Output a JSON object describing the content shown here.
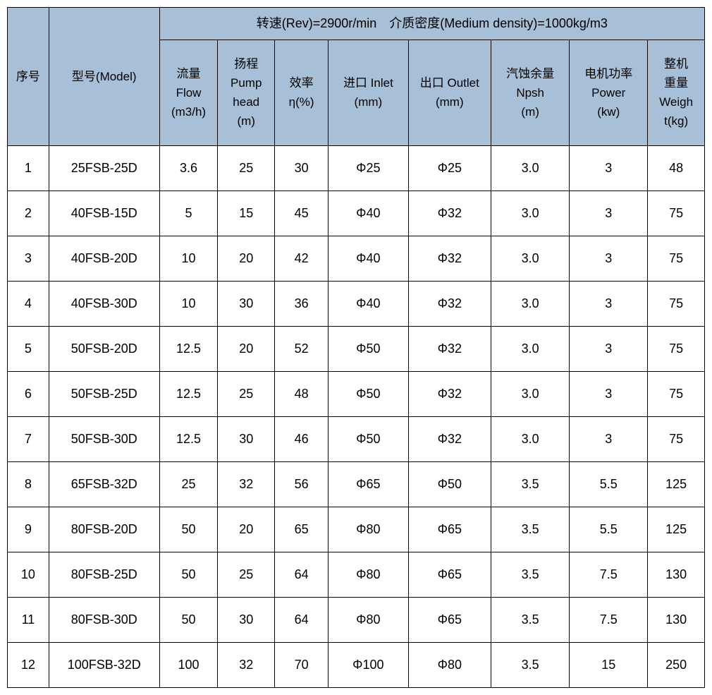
{
  "table": {
    "top_header": "转速(Rev)=2900r/min 介质密度(Medium density)=1000kg/m3",
    "header_bg_color": "#a8bfd8",
    "border_color": "#000000",
    "columns": {
      "seq": "序号",
      "model": "型号(Model)",
      "flow": "流量",
      "flow_en": "Flow",
      "flow_unit": "(m3/h)",
      "head": "扬程",
      "head_en": "Pump",
      "head_en2": "head",
      "head_unit": "(m)",
      "eff": "效率",
      "eff_unit": "η(%)",
      "inlet": "进口 Inlet",
      "inlet_unit": "(mm)",
      "outlet": "出口 Outlet",
      "outlet_unit": "(mm)",
      "npsh": "汽蚀余量",
      "npsh_en": "Npsh",
      "npsh_unit": "(m)",
      "power": "电机功率",
      "power_en": "Power",
      "power_unit": "(kw)",
      "weight": "整机",
      "weight2": "重量",
      "weight_en": "Weigh",
      "weight_unit": "t(kg)"
    },
    "rows": [
      {
        "seq": "1",
        "model": "25FSB-25D",
        "flow": "3.6",
        "head": "25",
        "eff": "30",
        "inlet": "Φ25",
        "outlet": "Φ25",
        "npsh": "3.0",
        "power": "3",
        "weight": "48"
      },
      {
        "seq": "2",
        "model": "40FSB-15D",
        "flow": "5",
        "head": "15",
        "eff": "45",
        "inlet": "Φ40",
        "outlet": "Φ32",
        "npsh": "3.0",
        "power": "3",
        "weight": "75"
      },
      {
        "seq": "3",
        "model": "40FSB-20D",
        "flow": "10",
        "head": "20",
        "eff": "42",
        "inlet": "Φ40",
        "outlet": "Φ32",
        "npsh": "3.0",
        "power": "3",
        "weight": "75"
      },
      {
        "seq": "4",
        "model": "40FSB-30D",
        "flow": "10",
        "head": "30",
        "eff": "36",
        "inlet": "Φ40",
        "outlet": "Φ32",
        "npsh": "3.0",
        "power": "3",
        "weight": "75"
      },
      {
        "seq": "5",
        "model": "50FSB-20D",
        "flow": "12.5",
        "head": "20",
        "eff": "52",
        "inlet": "Φ50",
        "outlet": "Φ32",
        "npsh": "3.0",
        "power": "3",
        "weight": "75"
      },
      {
        "seq": "6",
        "model": "50FSB-25D",
        "flow": "12.5",
        "head": "25",
        "eff": "48",
        "inlet": "Φ50",
        "outlet": "Φ32",
        "npsh": "3.0",
        "power": "3",
        "weight": "75"
      },
      {
        "seq": "7",
        "model": "50FSB-30D",
        "flow": "12.5",
        "head": "30",
        "eff": "46",
        "inlet": "Φ50",
        "outlet": "Φ32",
        "npsh": "3.0",
        "power": "3",
        "weight": "75"
      },
      {
        "seq": "8",
        "model": "65FSB-32D",
        "flow": "25",
        "head": "32",
        "eff": "56",
        "inlet": "Φ65",
        "outlet": "Φ50",
        "npsh": "3.5",
        "power": "5.5",
        "weight": "125"
      },
      {
        "seq": "9",
        "model": "80FSB-20D",
        "flow": "50",
        "head": "20",
        "eff": "65",
        "inlet": "Φ80",
        "outlet": "Φ65",
        "npsh": "3.5",
        "power": "5.5",
        "weight": "125"
      },
      {
        "seq": "10",
        "model": "80FSB-25D",
        "flow": "50",
        "head": "25",
        "eff": "64",
        "inlet": "Φ80",
        "outlet": "Φ65",
        "npsh": "3.5",
        "power": "7.5",
        "weight": "130"
      },
      {
        "seq": "11",
        "model": "80FSB-30D",
        "flow": "50",
        "head": "30",
        "eff": "64",
        "inlet": "Φ80",
        "outlet": "Φ65",
        "npsh": "3.5",
        "power": "7.5",
        "weight": "130"
      },
      {
        "seq": "12",
        "model": "100FSB-32D",
        "flow": "100",
        "head": "32",
        "eff": "70",
        "inlet": "Φ100",
        "outlet": "Φ80",
        "npsh": "3.5",
        "power": "15",
        "weight": "250"
      }
    ]
  }
}
